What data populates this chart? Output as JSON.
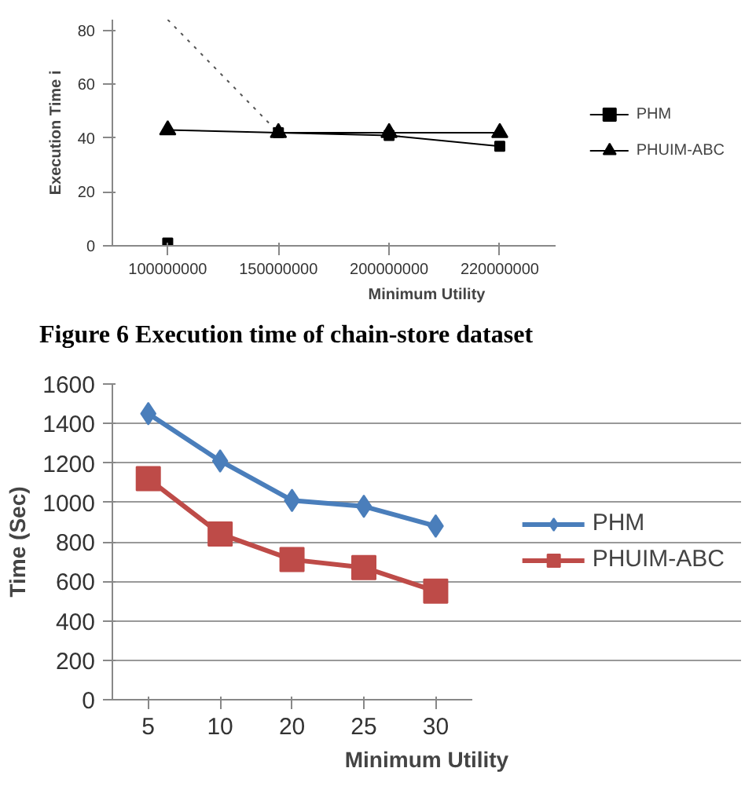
{
  "chart_data": [
    {
      "type": "line",
      "categories": [
        "100000000",
        "150000000",
        "200000000",
        "220000000"
      ],
      "xlabel": "Minimum Utility",
      "ylabel": "Execution Time i",
      "ylim": [
        0,
        84
      ],
      "yticks": [
        0,
        20,
        40,
        60,
        80
      ],
      "grid": false,
      "legend": "right",
      "series": [
        {
          "name": "PHM",
          "color": "#000000",
          "marker": "square",
          "line_style": "solid",
          "values": [
            null,
            42,
            41,
            37
          ]
        },
        {
          "name": "PHUIM-ABC",
          "color": "#000000",
          "marker": "triangle",
          "line_style": "solid",
          "values": [
            43,
            42,
            42,
            42
          ]
        },
        {
          "type": "scatter",
          "color": "#000000",
          "marker": "square",
          "values": [
            1,
            null,
            null,
            null
          ]
        },
        {
          "color": "#555555",
          "marker": "none",
          "line_style": "dotted",
          "values": [
            84,
            42,
            null,
            null
          ]
        }
      ],
      "annotations": [
        "Figure 6 Execution time of chain-store dataset"
      ]
    },
    {
      "type": "line",
      "categories": [
        "5",
        "10",
        "20",
        "25",
        "30"
      ],
      "xlabel": "Minimum Utility",
      "ylabel": "Time (Sec)",
      "ylim": [
        0,
        1600
      ],
      "yticks": [
        0,
        200,
        400,
        600,
        800,
        1000,
        1200,
        1400,
        1600
      ],
      "grid": "y",
      "legend": "right",
      "series": [
        {
          "name": "PHM",
          "color": "#4a7ebb",
          "marker": "diamond",
          "line_style": "solid",
          "values": [
            1450,
            1210,
            1010,
            980,
            880
          ]
        },
        {
          "name": "PHUIM-ABC",
          "color": "#be4b48",
          "marker": "square",
          "line_style": "solid",
          "values": [
            1120,
            840,
            710,
            670,
            550
          ]
        }
      ]
    }
  ]
}
